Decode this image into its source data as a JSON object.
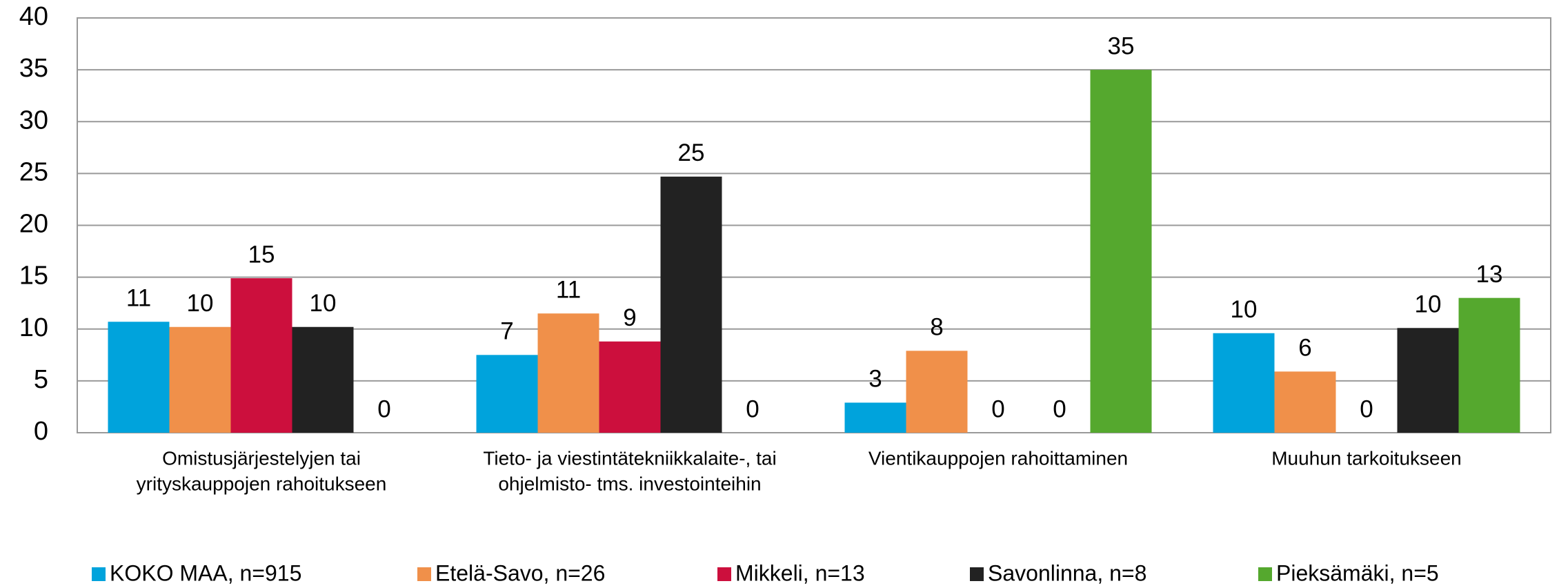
{
  "chart_data": {
    "type": "bar",
    "categories": [
      [
        "Omistusjärjestelyjen tai",
        "yrityskauppojen rahoitukseen"
      ],
      [
        "Tieto- ja viestintätekniikkalaite-, tai",
        "ohjelmisto- tms. investointeihin"
      ],
      [
        "Vientikauppojen rahoittaminen"
      ],
      [
        "Muuhun tarkoitukseen"
      ]
    ],
    "series": [
      {
        "name": "KOKO MAA, n=915",
        "color": "#00a3dc",
        "values": [
          10.7,
          7.5,
          2.9,
          9.6
        ],
        "value_labels": [
          "11",
          "7",
          "3",
          "10"
        ]
      },
      {
        "name": "Etelä-Savo, n=26",
        "color": "#f0904a",
        "values": [
          10.2,
          11.5,
          7.9,
          5.9
        ],
        "value_labels": [
          "10",
          "11",
          "8",
          "6"
        ]
      },
      {
        "name": "Mikkeli, n=13",
        "color": "#cc0f3d",
        "values": [
          14.9,
          8.8,
          0,
          0
        ],
        "value_labels": [
          "15",
          "9",
          "0",
          "0"
        ]
      },
      {
        "name": "Savonlinna, n=8",
        "color": "#222222",
        "values": [
          10.2,
          24.7,
          0,
          10.1
        ],
        "value_labels": [
          "10",
          "25",
          "0",
          "10"
        ]
      },
      {
        "name": "Pieksämäki, n=5",
        "color": "#55a82e",
        "values": [
          0,
          0,
          35,
          13
        ],
        "value_labels": [
          "0",
          "0",
          "35",
          "13"
        ]
      }
    ],
    "ylim": [
      0,
      40
    ],
    "yticks": [
      0,
      5,
      10,
      15,
      20,
      25,
      30,
      35,
      40
    ],
    "grid": true,
    "legend": "bottom"
  }
}
